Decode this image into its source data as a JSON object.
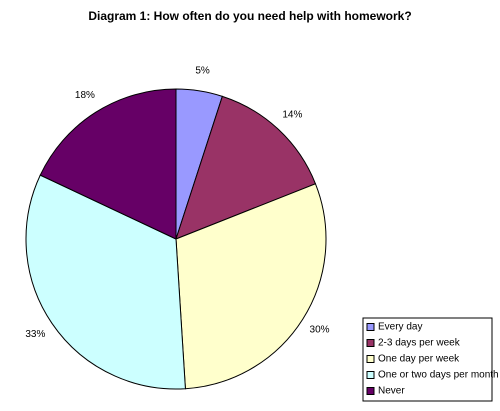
{
  "chart_data": {
    "type": "pie",
    "title": "Diagram 1: How often do you need help with homework?",
    "categories": [
      "Every day",
      "2-3 days per week",
      "One day per week",
      "One or two days per month",
      "Never"
    ],
    "values": [
      5,
      14,
      30,
      33,
      18
    ],
    "value_labels": [
      "5%",
      "14%",
      "30%",
      "33%",
      "18%"
    ],
    "colors": [
      "#9999ff",
      "#993366",
      "#ffffcc",
      "#ccffff",
      "#660066"
    ],
    "legend": "bottom-right"
  }
}
